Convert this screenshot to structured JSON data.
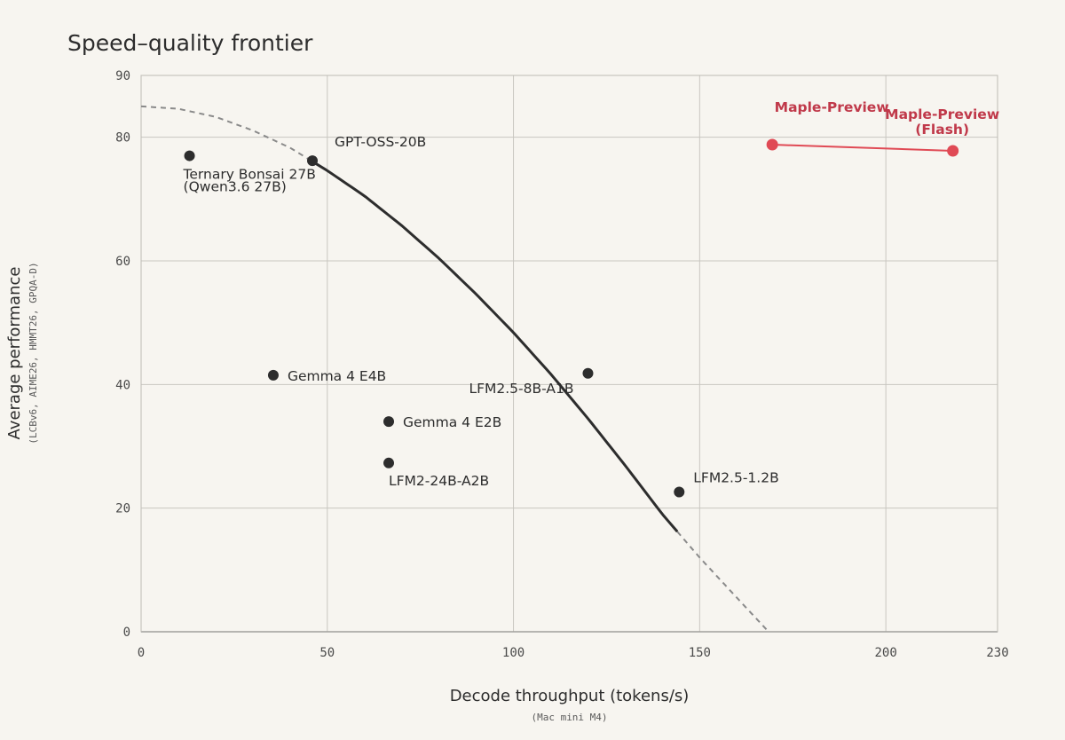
{
  "chart_data": {
    "type": "scatter",
    "title": "Speed–quality frontier",
    "xlabel": "Decode throughput (tokens/s)",
    "xlabel_sub": "(Mac mini M4)",
    "ylabel": "Average performance",
    "ylabel_sub": "(LCBv6, AIME26, HMMT26, GPQA-D)",
    "xlim": [
      0,
      230
    ],
    "ylim": [
      0,
      90
    ],
    "x_ticks": [
      0,
      50,
      100,
      150,
      200,
      230
    ],
    "y_ticks": [
      0,
      20,
      40,
      60,
      80,
      90
    ],
    "grid": true,
    "colors": {
      "point": "#2d2d2d",
      "highlight": "#e04a55",
      "frontier": "#2d2d2d",
      "frontier_dashed": "#8a8a8a"
    },
    "points": [
      {
        "label": [
          "Ternary Bonsai 27B",
          "(Qwen3.6 27B)"
        ],
        "x": 13,
        "y": 77.0
      },
      {
        "label": [
          "GPT-OSS-20B"
        ],
        "x": 46,
        "y": 76.2
      },
      {
        "label": [
          "Gemma 4 E4B"
        ],
        "x": 35.5,
        "y": 41.5
      },
      {
        "label": [
          "Gemma 4 E2B"
        ],
        "x": 66.5,
        "y": 34.0
      },
      {
        "label": [
          "LFM2-24B-A2B"
        ],
        "x": 66.5,
        "y": 27.3
      },
      {
        "label": [
          "LFM2.5-8B-A1B"
        ],
        "x": 120,
        "y": 41.8
      },
      {
        "label": [
          "LFM2.5-1.2B"
        ],
        "x": 144.5,
        "y": 22.6
      }
    ],
    "highlight_points": [
      {
        "label": [
          "Maple-Preview"
        ],
        "x": 169.5,
        "y": 78.8
      },
      {
        "label": [
          "Maple-Preview",
          "(Flash)"
        ],
        "x": 218,
        "y": 77.8
      }
    ],
    "frontier": {
      "solid_from_x": 47,
      "solid_to_x": 144,
      "curve": [
        [
          0,
          85
        ],
        [
          10,
          84.6
        ],
        [
          20,
          83.3
        ],
        [
          30,
          81.1
        ],
        [
          40,
          78.3
        ],
        [
          50,
          74.6
        ],
        [
          60,
          70.5
        ],
        [
          70,
          65.7
        ],
        [
          80,
          60.4
        ],
        [
          90,
          54.6
        ],
        [
          100,
          48.4
        ],
        [
          110,
          41.7
        ],
        [
          120,
          34.5
        ],
        [
          130,
          26.9
        ],
        [
          140,
          19.0
        ],
        [
          150,
          12.0
        ],
        [
          160,
          5.5
        ],
        [
          168.5,
          0
        ]
      ]
    }
  }
}
